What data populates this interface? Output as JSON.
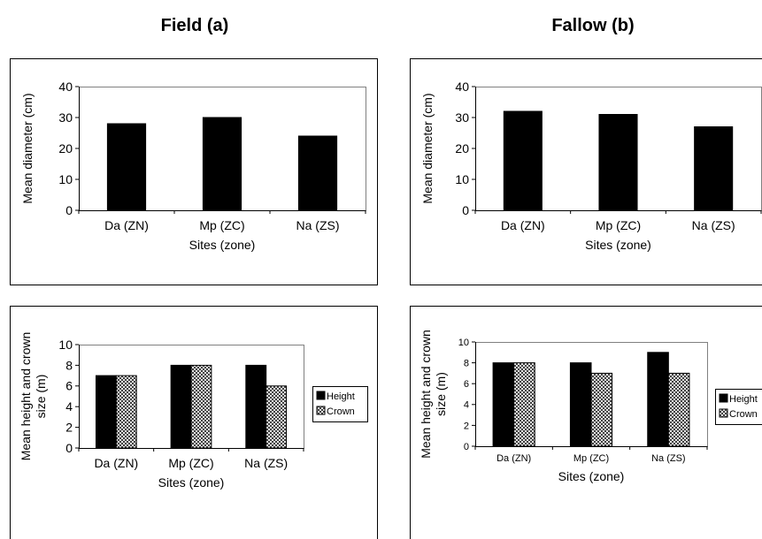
{
  "titles": {
    "left": "Field (a)",
    "right": "Fallow (b)"
  },
  "colors": {
    "bar": "#000000",
    "plot_border": "#808080",
    "frame": "#000000"
  },
  "chart_data": [
    {
      "id": "field_diameter",
      "type": "bar",
      "categories": [
        "Da (ZN)",
        "Mp (ZC)",
        "Na (ZS)"
      ],
      "series": [
        {
          "values": [
            28,
            30,
            24
          ]
        }
      ],
      "xlabel": "Sites (zone)",
      "ylabel": "Mean diameter (cm)",
      "ylim": [
        0,
        40
      ],
      "yticks": [
        0,
        10,
        20,
        30,
        40
      ],
      "legend": []
    },
    {
      "id": "fallow_diameter",
      "type": "bar",
      "categories": [
        "Da (ZN)",
        "Mp (ZC)",
        "Na (ZS)"
      ],
      "series": [
        {
          "values": [
            32,
            31,
            27
          ]
        }
      ],
      "xlabel": "Sites (zone)",
      "ylabel": "Mean diameter (cm)",
      "ylim": [
        0,
        40
      ],
      "yticks": [
        0,
        10,
        20,
        30,
        40
      ],
      "legend": []
    },
    {
      "id": "field_height_crown",
      "type": "bar",
      "categories": [
        "Da (ZN)",
        "Mp (ZC)",
        "Na (ZS)"
      ],
      "series": [
        {
          "name": "Height",
          "values": [
            7,
            8,
            8
          ],
          "fill": "solid"
        },
        {
          "name": "Crown",
          "values": [
            7,
            8,
            6
          ],
          "fill": "crosshatch"
        }
      ],
      "xlabel": "Sites (zone)",
      "ylabel": "Mean height and crown size (m)",
      "ylim": [
        0,
        10
      ],
      "yticks": [
        0,
        2,
        4,
        6,
        8,
        10
      ],
      "legend_position": "right"
    },
    {
      "id": "fallow_height_crown",
      "type": "bar",
      "categories": [
        "Da (ZN)",
        "Mp (ZC)",
        "Na (ZS)"
      ],
      "series": [
        {
          "name": "Height",
          "values": [
            8,
            8,
            9
          ],
          "fill": "solid"
        },
        {
          "name": "Crown",
          "values": [
            8,
            7,
            7
          ],
          "fill": "crosshatch"
        }
      ],
      "xlabel": "Sites (zone)",
      "ylabel": "Mean height and crown size (m)",
      "ylim": [
        0,
        10
      ],
      "yticks": [
        0,
        2,
        4,
        6,
        8,
        10
      ],
      "legend_position": "right"
    }
  ]
}
